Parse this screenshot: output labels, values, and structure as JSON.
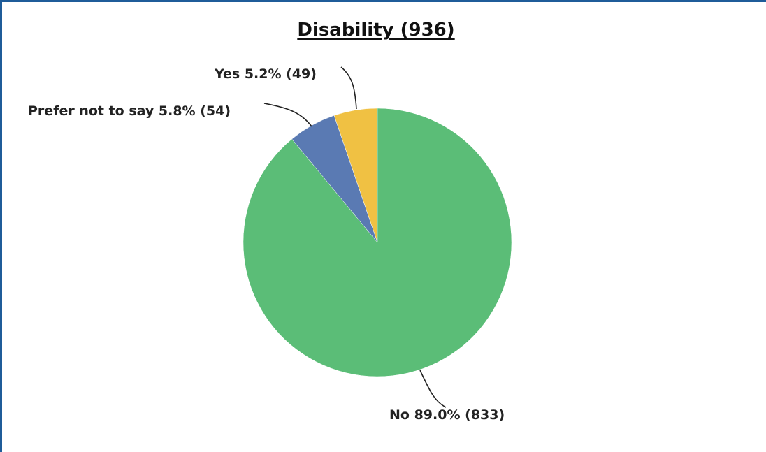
{
  "chart_data": {
    "type": "pie",
    "title": "Disability (936)",
    "slices": [
      {
        "label": "Yes 5.2% (49)",
        "category": "Yes",
        "value": 49,
        "percent": 5.2,
        "color": "#f0c143"
      },
      {
        "label": "Prefer not to say 5.8% (54)",
        "category": "Prefer not to say",
        "value": 54,
        "percent": 5.8,
        "color": "#5a7ab3"
      },
      {
        "label": "No 89.0% (833)",
        "category": "No",
        "value": 833,
        "percent": 89.0,
        "color": "#5bbd77"
      }
    ],
    "start": "12 o'clock",
    "direction": "counterclockwise"
  }
}
